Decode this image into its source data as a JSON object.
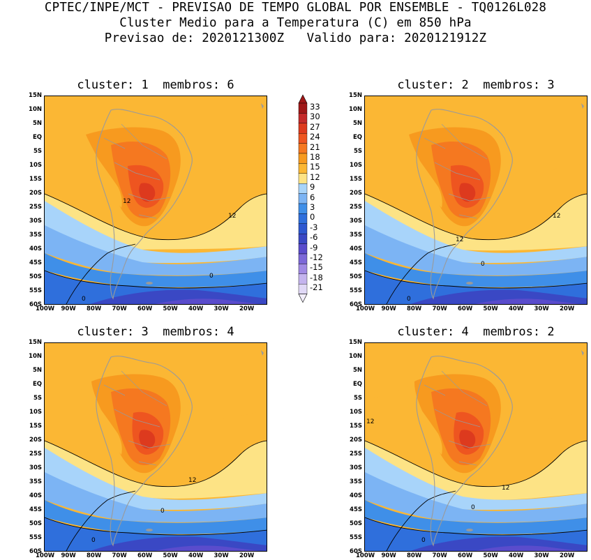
{
  "header": {
    "line1": "CPTEC/INPE/MCT - PREVISAO DE TEMPO GLOBAL POR ENSEMBLE - TQ0126L028",
    "line2": "Cluster Medio para a Temperatura (C) em 850 hPa",
    "line3": "Previsao de: 2020121300Z   Valido para: 2020121912Z"
  },
  "panels": [
    {
      "title": "cluster: 1  membros: 6",
      "contours": [
        "12",
        "12",
        "0",
        "0"
      ]
    },
    {
      "title": "cluster: 2  membros: 3",
      "contours": [
        "12",
        "12",
        "0",
        "0"
      ]
    },
    {
      "title": "cluster: 3  membros: 4",
      "contours": [
        "12",
        "0",
        "0"
      ]
    },
    {
      "title": "cluster: 4  membros: 2",
      "contours": [
        "12",
        "12",
        "0",
        "0"
      ]
    }
  ],
  "lat_labels": [
    "15N",
    "10N",
    "5N",
    "EQ",
    "5S",
    "10S",
    "15S",
    "20S",
    "25S",
    "30S",
    "35S",
    "40S",
    "45S",
    "50S",
    "55S",
    "60S"
  ],
  "lon_labels": [
    "100W",
    "90W",
    "80W",
    "70W",
    "60W",
    "50W",
    "40W",
    "30W",
    "20W"
  ],
  "colorbar": {
    "labels": [
      "33",
      "30",
      "27",
      "24",
      "21",
      "18",
      "15",
      "12",
      "9",
      "6",
      "3",
      "0",
      "-3",
      "-6",
      "-9",
      "-12",
      "-15",
      "-18",
      "-21"
    ],
    "colors": [
      "#a01818",
      "#c42a2a",
      "#dd3a1e",
      "#ee5520",
      "#f57820",
      "#f79a1f",
      "#fbb734",
      "#fde385",
      "#a8d4fa",
      "#7cb4f4",
      "#3f8fe8",
      "#2f6fdc",
      "#2e58d0",
      "#3a48c4",
      "#5a4ccc",
      "#7c68d8",
      "#a08ae4",
      "#c4b4ee",
      "#e0d8f6"
    ]
  }
}
